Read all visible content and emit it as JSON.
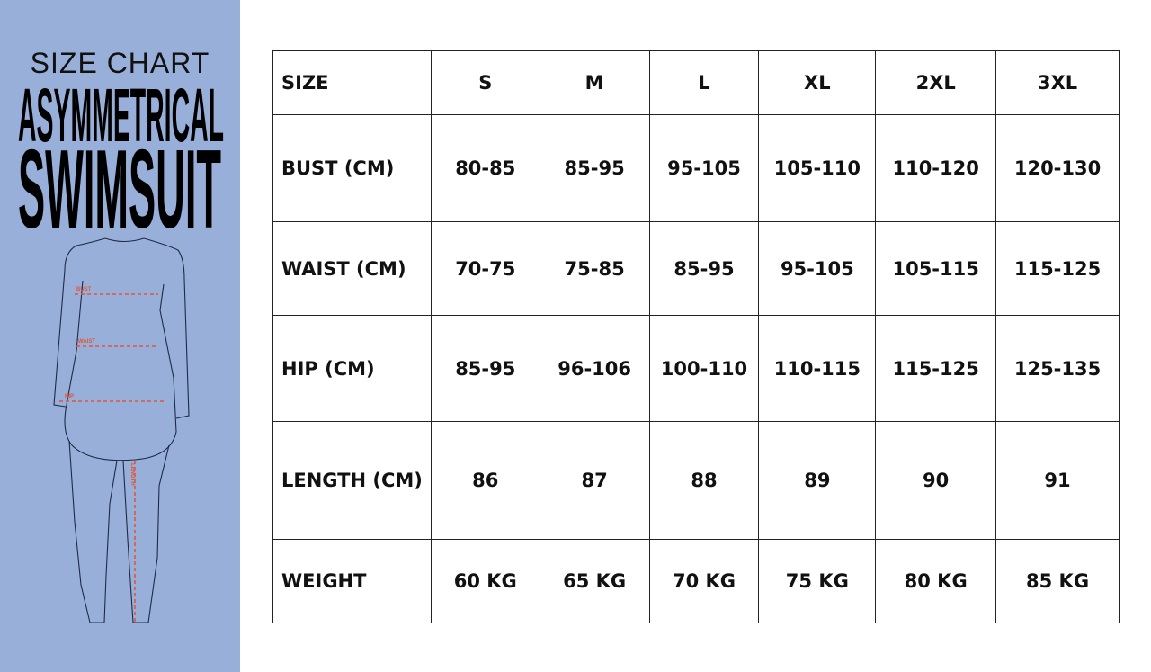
{
  "panel": {
    "subtitle": "SIZE CHART",
    "title_line1": "ASYMMETRICAL",
    "title_line2": "SWIMSUIT",
    "background_color": "#98b0d9",
    "measure_labels": {
      "bust": "BUST",
      "waist": "WAIST",
      "hip": "HIP",
      "length": "LENGTH"
    },
    "measure_color": "#e0553a"
  },
  "table": {
    "header": [
      "SIZE",
      "S",
      "M",
      "L",
      "XL",
      "2XL",
      "3XL"
    ],
    "rows": [
      {
        "label": "BUST (CM)",
        "values": [
          "80-85",
          "85-95",
          "95-105",
          "105-110",
          "110-120",
          "120-130"
        ]
      },
      {
        "label": "WAIST (CM)",
        "values": [
          "70-75",
          "75-85",
          "85-95",
          "95-105",
          "105-115",
          "115-125"
        ]
      },
      {
        "label": "HIP (CM)",
        "values": [
          "85-95",
          "96-106",
          "100-110",
          "110-115",
          "115-125",
          "125-135"
        ]
      },
      {
        "label": "LENGTH (CM)",
        "values": [
          "86",
          "87",
          "88",
          "89",
          "90",
          "91"
        ]
      },
      {
        "label": "WEIGHT",
        "values": [
          "60 KG",
          "65 KG",
          "70 KG",
          "75 KG",
          "80 KG",
          "85 KG"
        ]
      }
    ]
  }
}
